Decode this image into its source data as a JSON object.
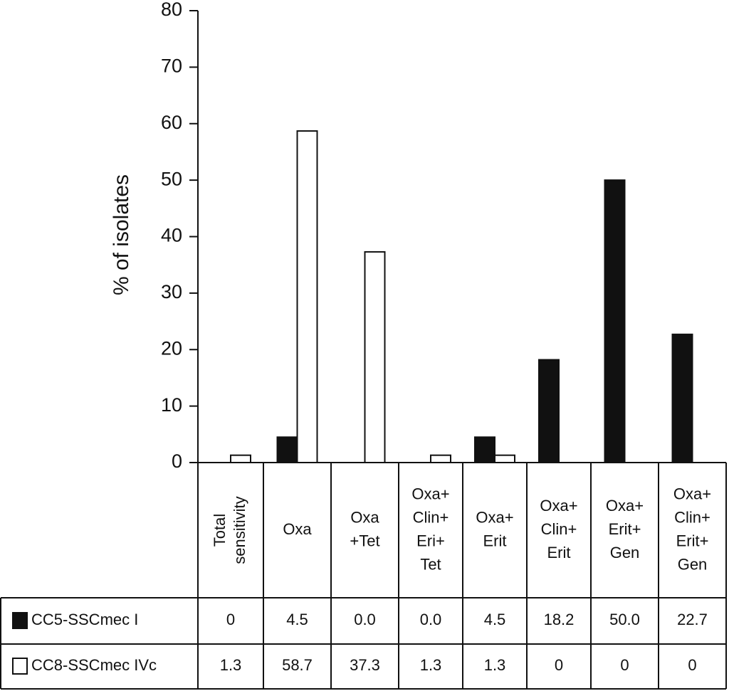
{
  "chart_data": {
    "type": "bar",
    "y_label": "% of isolates",
    "categories": [
      [
        "Total",
        "sensitivity"
      ],
      [
        "Oxa"
      ],
      [
        "Oxa",
        "+Tet"
      ],
      [
        "Oxa+",
        "Clin+",
        "Eri+",
        "Tet"
      ],
      [
        "Oxa+",
        "Erit"
      ],
      [
        "Oxa+",
        "Clin+",
        "Erit"
      ],
      [
        "Oxa+",
        "Erit+",
        "Gen"
      ],
      [
        "Oxa+",
        "Clin+",
        "Erit+",
        "Gen"
      ]
    ],
    "series": [
      {
        "name": "CC5-SSCmec I",
        "color": "#111111",
        "values": [
          0,
          4.5,
          0,
          0,
          4.5,
          18.2,
          50,
          22.7
        ],
        "value_labels": [
          "0",
          "4.5",
          "0.0",
          "0.0",
          "4.5",
          "18.2",
          "50.0",
          "22.7"
        ]
      },
      {
        "name": "CC8-SSCmec IVc",
        "color": "#ffffff",
        "values": [
          1.3,
          58.7,
          37.3,
          1.3,
          1.3,
          0,
          0,
          0
        ]
      }
    ],
    "ylim": [
      0,
      80
    ],
    "yticks": [
      0,
      10,
      20,
      30,
      40,
      50,
      60,
      70,
      80
    ]
  }
}
